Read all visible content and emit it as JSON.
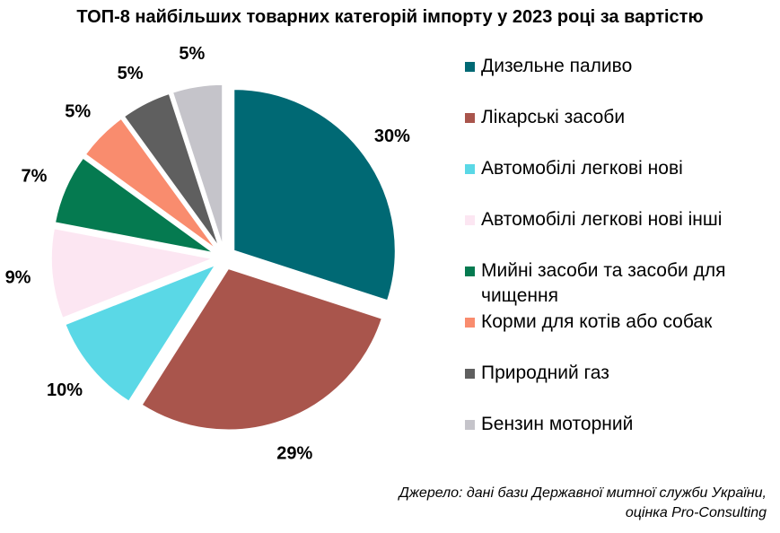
{
  "chart_data": {
    "type": "pie",
    "title": "ТОП-8 найбільших товарних категорій імпорту у 2023 році за вартістю",
    "slices": [
      {
        "label": "Дизельне паливо",
        "value": 30,
        "display": "30%",
        "color": "#006974"
      },
      {
        "label": "Лікарські засоби",
        "value": 29,
        "display": "29%",
        "color": "#A9554C"
      },
      {
        "label": "Автомобілі легкові нові",
        "value": 10,
        "display": "10%",
        "color": "#5AD8E6"
      },
      {
        "label": "Автомобілі легкові нові інші",
        "value": 9,
        "display": "9%",
        "color": "#FCE6F2"
      },
      {
        "label": "Мийні засоби та засоби для чищення",
        "value": 7,
        "display": "7%",
        "color": "#057A50"
      },
      {
        "label": "Корми для котів або собак",
        "value": 5,
        "display": "5%",
        "color": "#F98C6E"
      },
      {
        "label": "Природний газ",
        "value": 5,
        "display": "5%",
        "color": "#5F5F5F"
      },
      {
        "label": "Бензин моторний",
        "value": 5,
        "display": "5%",
        "color": "#C5C4CA"
      }
    ],
    "legend_position": "right",
    "exploded": true
  },
  "source": {
    "line1": "Джерело: дані бази Державної митної служби України,",
    "line2": "оцінка Pro-Consulting"
  }
}
